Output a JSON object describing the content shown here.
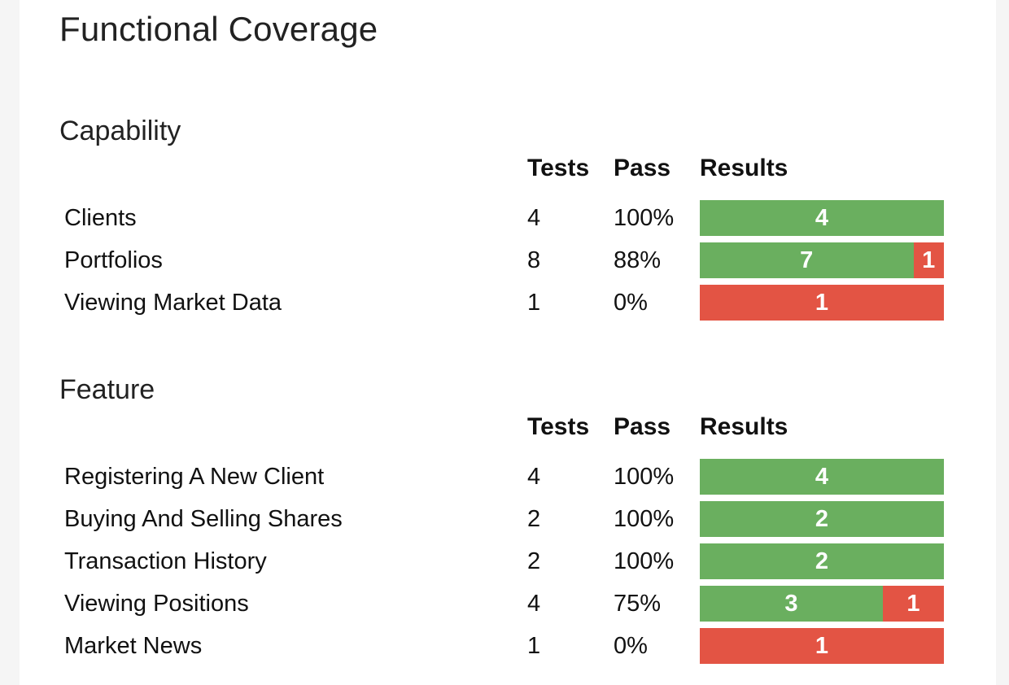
{
  "title": "Functional Coverage",
  "colors": {
    "pass": "#6aaf5f",
    "fail": "#e35444"
  },
  "sections": [
    {
      "title": "Capability",
      "headers": {
        "tests": "Tests",
        "pass": "Pass",
        "results": "Results"
      },
      "rows": [
        {
          "name": "Clients",
          "tests": "4",
          "pass": "100%",
          "passed": 4,
          "failed": 0
        },
        {
          "name": "Portfolios",
          "tests": "8",
          "pass": "88%",
          "passed": 7,
          "failed": 1
        },
        {
          "name": "Viewing Market Data",
          "tests": "1",
          "pass": "0%",
          "passed": 0,
          "failed": 1
        }
      ]
    },
    {
      "title": "Feature",
      "headers": {
        "tests": "Tests",
        "pass": "Pass",
        "results": "Results"
      },
      "rows": [
        {
          "name": "Registering A New Client",
          "tests": "4",
          "pass": "100%",
          "passed": 4,
          "failed": 0
        },
        {
          "name": "Buying And Selling Shares",
          "tests": "2",
          "pass": "100%",
          "passed": 2,
          "failed": 0
        },
        {
          "name": "Transaction History",
          "tests": "2",
          "pass": "100%",
          "passed": 2,
          "failed": 0
        },
        {
          "name": "Viewing Positions",
          "tests": "4",
          "pass": "75%",
          "passed": 3,
          "failed": 1
        },
        {
          "name": "Market News",
          "tests": "1",
          "pass": "0%",
          "passed": 0,
          "failed": 1
        }
      ]
    }
  ]
}
